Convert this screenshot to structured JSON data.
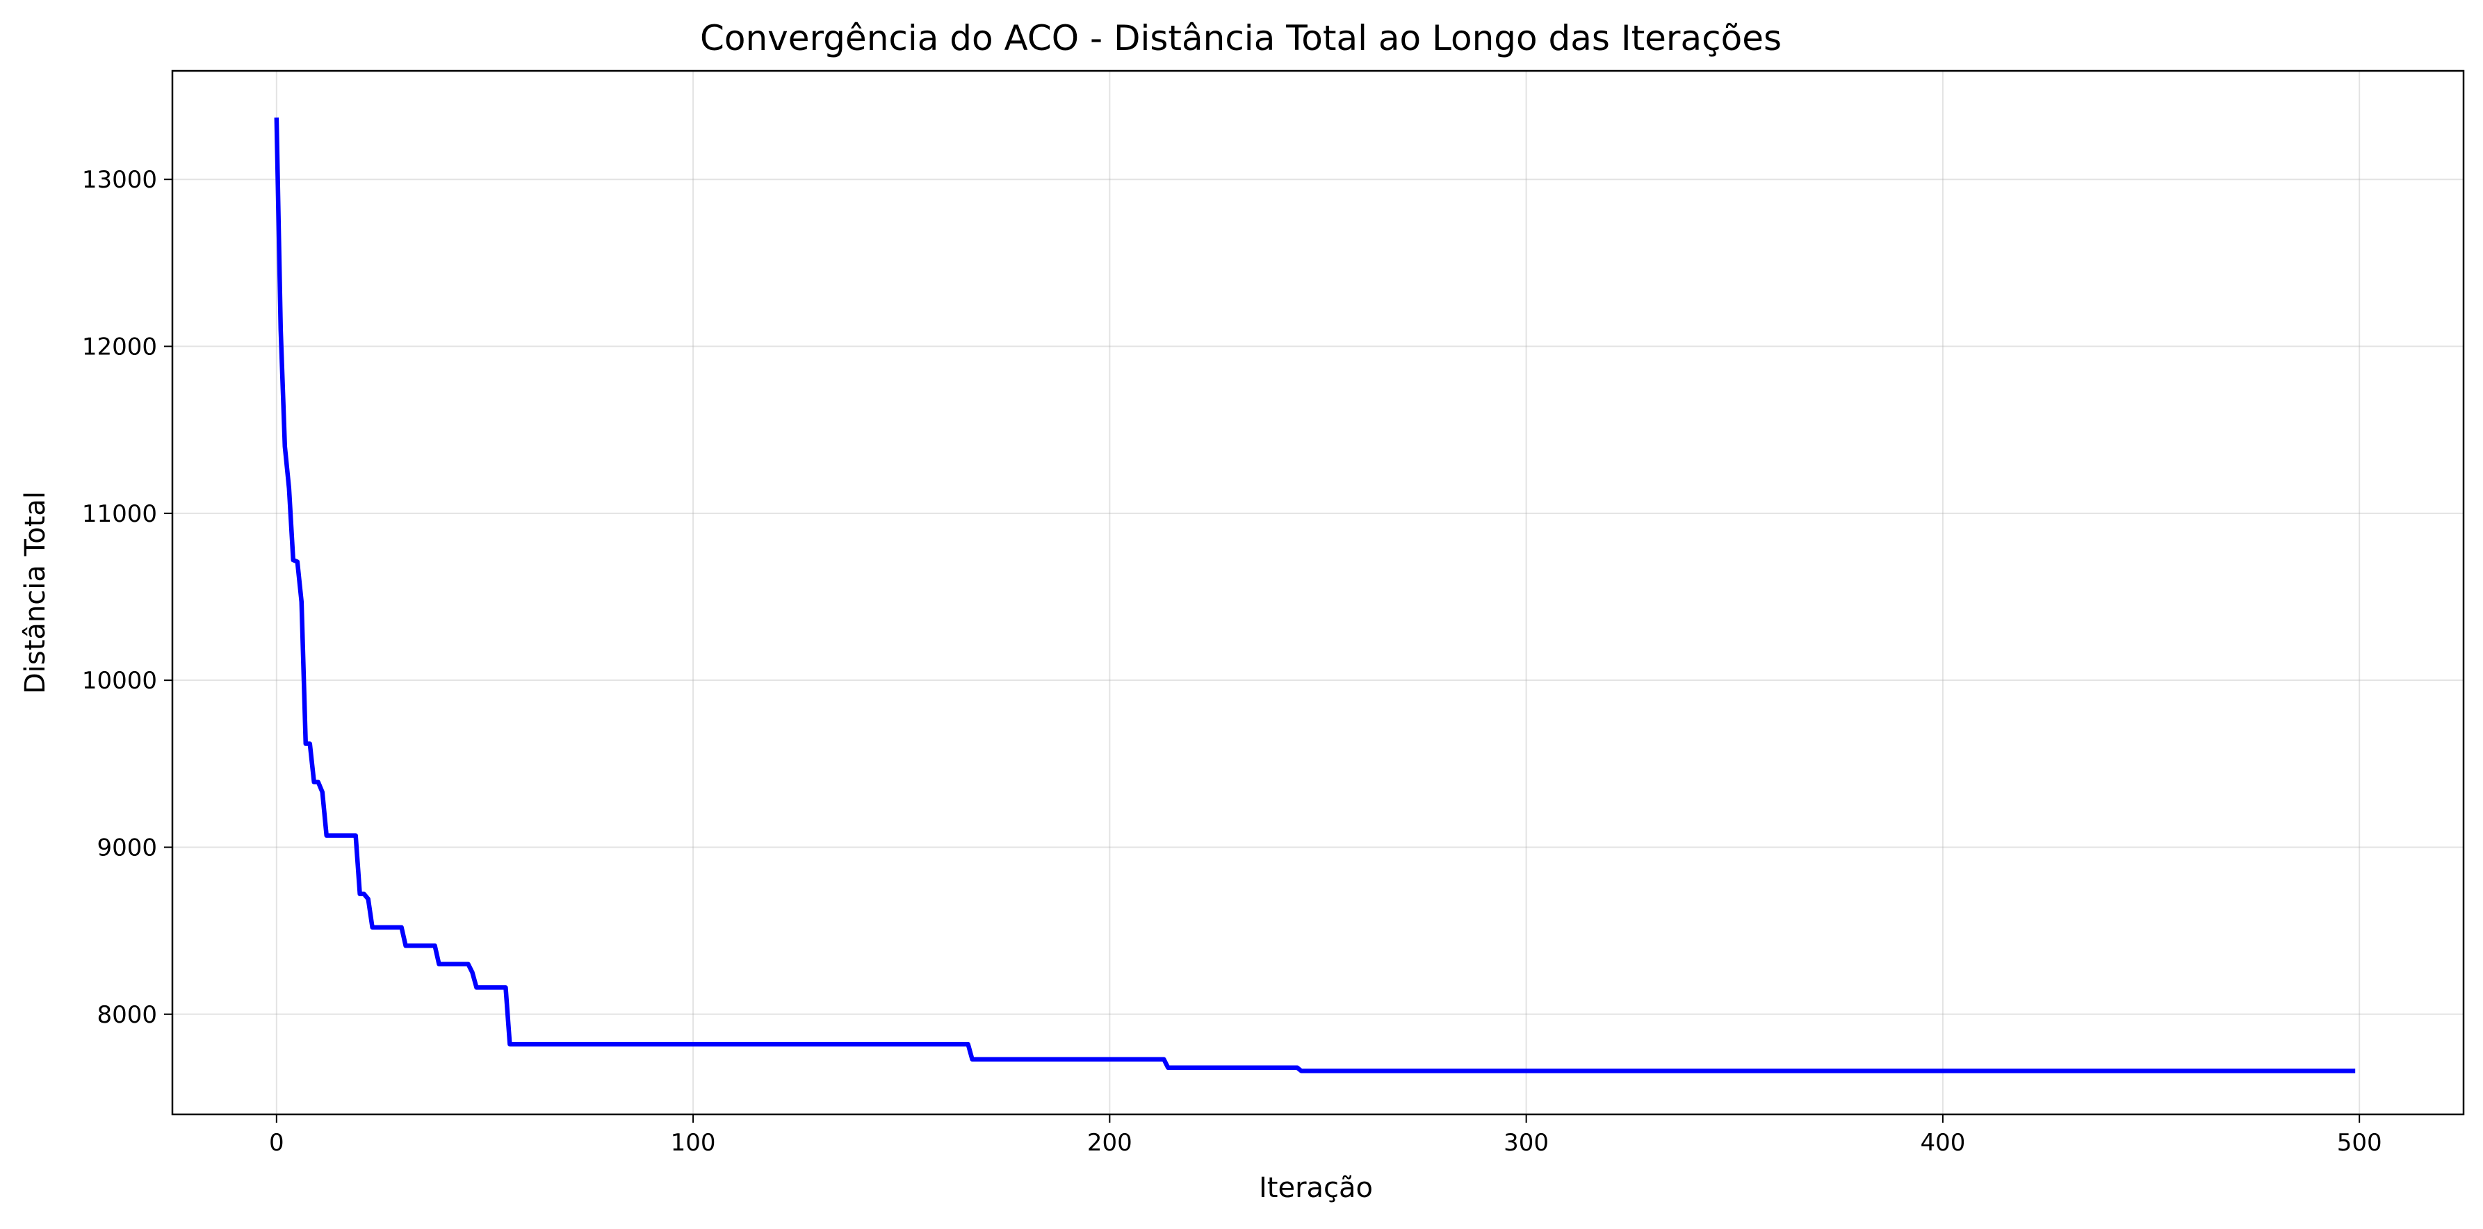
{
  "chart_data": {
    "type": "line",
    "title": "Convergência do ACO - Distância Total ao Longo das Iterações",
    "xlabel": "Iteração",
    "ylabel": "Distância Total",
    "xlim": [
      -25,
      525
    ],
    "ylim": [
      7400,
      13650
    ],
    "xticks": [
      0,
      100,
      200,
      300,
      400,
      500
    ],
    "yticks": [
      8000,
      9000,
      10000,
      11000,
      12000,
      13000
    ],
    "grid": true,
    "legend": "none",
    "series_color": "#0000ff",
    "series": [
      {
        "x": [
          0,
          1,
          2,
          3,
          4,
          5,
          6,
          7,
          8,
          9,
          10,
          11,
          12,
          19,
          20,
          21,
          22,
          23,
          30,
          31,
          38,
          39,
          46,
          47,
          48,
          55,
          56,
          166,
          167,
          213,
          214,
          245,
          246,
          499
        ],
        "y": [
          13370,
          12100,
          11400,
          11150,
          10720,
          10710,
          10470,
          9620,
          9620,
          9390,
          9390,
          9330,
          9070,
          9070,
          8720,
          8720,
          8690,
          8520,
          8520,
          8410,
          8410,
          8300,
          8300,
          8250,
          8160,
          8160,
          7820,
          7820,
          7730,
          7730,
          7680,
          7680,
          7660,
          7660
        ]
      }
    ]
  }
}
